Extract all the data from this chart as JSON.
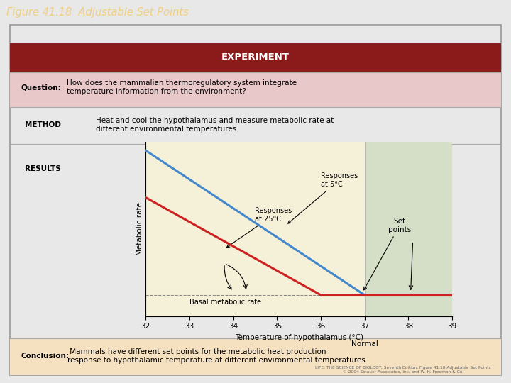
{
  "title": "Figure 41.18  Adjustable Set Points",
  "title_color": "#f0d080",
  "title_bg": "#4a4a7a",
  "experiment_title": "EXPERIMENT",
  "experiment_title_bg": "#8b1a1a",
  "question_text": "How does the mammalian thermoregulatory system integrate\ntemperature information from the environment?",
  "question_bold": "Question:",
  "question_bg": "#e8c8c8",
  "method_label": "METHOD",
  "method_text": "Heat and cool the hypothalamus and measure metabolic rate at\ndifferent environmental temperatures.",
  "results_label": "RESULTS",
  "conclusion_bold": "Conclusion:",
  "conclusion_text": " Mammals have different set points for the metabolic heat production\nresponse to hypothalamic temperature at different environmental temperatures.",
  "conclusion_bg": "#f5e0c0",
  "plot_bg": "#f5f0d8",
  "plot_bg_highlight": "#c8d8c0",
  "xlabel": "Temperature of hypothalamus (°C)",
  "ylabel": "Metabolic rate",
  "x_ticks": [
    32,
    33,
    34,
    35,
    36,
    37,
    38,
    39
  ],
  "xlim": [
    32,
    39
  ],
  "ylim": [
    0,
    1
  ],
  "basal_level": 0.12,
  "blue_color": "#4488cc",
  "red_color": "#cc2222",
  "set_points_label": "Set\npoints",
  "normal_label": "Normal",
  "basal_label": "Basal metabolic rate",
  "footer_text": "LIFE: THE SCIENCE OF BIOLOGY, Seventh Edition, Figure 41.18 Adjustable Set Points\n© 2004 Sinauer Associates, Inc. and W. H. Freeman & Co.",
  "outer_bg": "#e8e8e8",
  "inner_bg": "#ffffff",
  "divider_color": "#aaaaaa"
}
